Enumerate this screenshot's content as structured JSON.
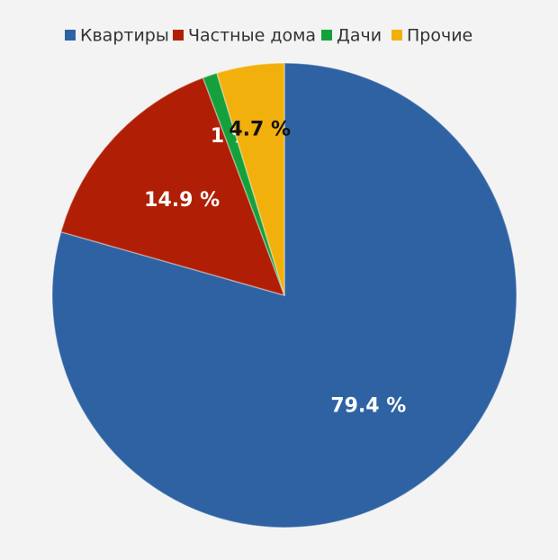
{
  "chart_data": {
    "type": "pie",
    "categories": [
      "Квартиры",
      "Частные дома",
      "Дачи",
      "Прочие"
    ],
    "values": [
      79.4,
      14.9,
      1,
      4.7
    ],
    "value_labels": [
      "79.4 %",
      "14.9 %",
      "1 %",
      "4.7 %"
    ],
    "colors": [
      "#2e62a2",
      "#b01f05",
      "#15a03c",
      "#f2b00c"
    ],
    "legend": "top"
  }
}
